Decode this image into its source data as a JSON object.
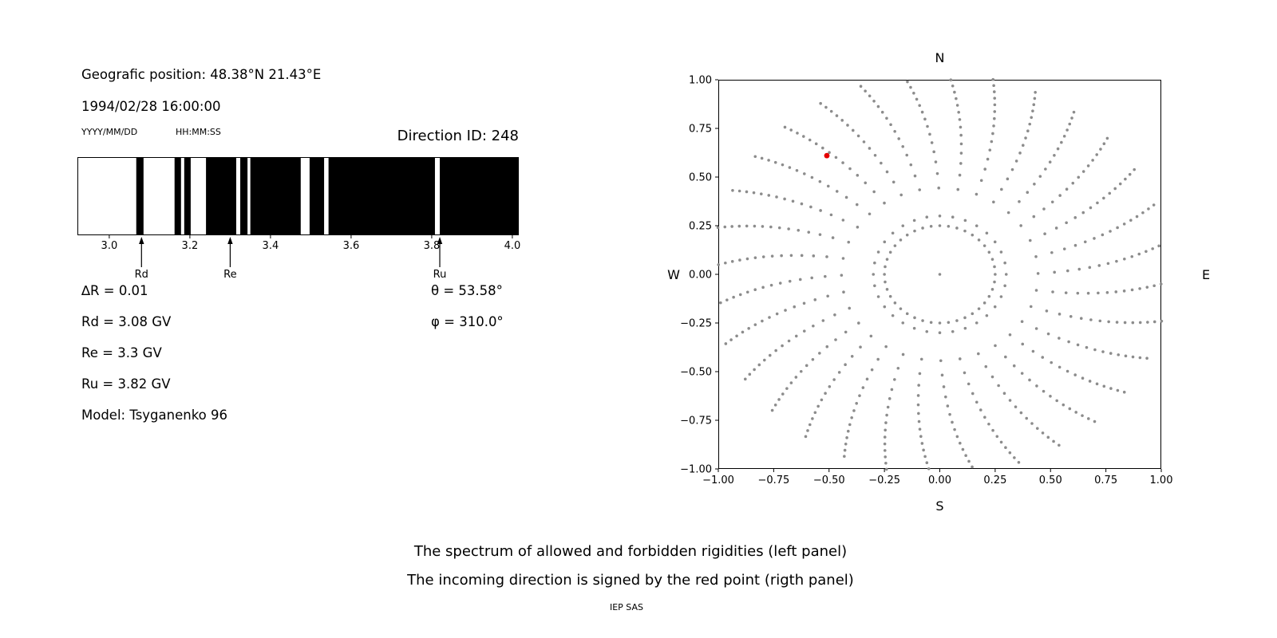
{
  "header": {
    "position": "Geografic position: 48.38°N 21.43°E",
    "datetime": "1994/02/28 16:00:00",
    "date_format_label": "YYYY/MM/DD",
    "time_format_label": "HH:MM:SS",
    "direction_id": "Direction ID: 248"
  },
  "params": {
    "delta_r": "∆R = 0.01",
    "theta": "θ = 53.58°",
    "rd": "Rd = 3.08 GV",
    "phi": "φ = 310.0°",
    "re": "Re = 3.3 GV",
    "ru": "Ru = 3.82 GV",
    "model": "Model: Tsyganenko 96"
  },
  "caption": {
    "line1": "The spectrum of allowed and forbidden rigidities (left panel)",
    "line2": "The incoming direction is signed by the red point (rigth panel)",
    "credit": "IEP SAS"
  },
  "chart_data": [
    {
      "type": "bar",
      "name": "rigidity-spectrum",
      "description": "Spectrum of allowed (black) and forbidden (white) rigidities in GV",
      "xlim": [
        2.921,
        4.016
      ],
      "xticks": [
        3.0,
        3.2,
        3.4,
        3.6,
        3.8,
        4.0
      ],
      "xtick_labels": [
        "3.0",
        "3.2",
        "3.4",
        "3.6",
        "3.8",
        "4.0"
      ],
      "allowed_color": "#000000",
      "forbidden_color": "#ffffff",
      "allowed_bands_gv": [
        [
          3.067,
          3.085
        ],
        [
          3.162,
          3.178
        ],
        [
          3.186,
          3.202
        ],
        [
          3.24,
          3.315
        ],
        [
          3.325,
          3.343
        ],
        [
          3.35,
          3.475
        ],
        [
          3.497,
          3.533
        ],
        [
          3.544,
          3.808
        ],
        [
          3.82,
          4.016
        ]
      ],
      "markers": [
        {
          "label": "Rd",
          "x": 3.08
        },
        {
          "label": "Re",
          "x": 3.3
        },
        {
          "label": "Ru",
          "x": 3.82
        }
      ]
    },
    {
      "type": "scatter",
      "name": "asymptotic-directions",
      "xlim": [
        -1.0,
        1.0
      ],
      "ylim": [
        -1.0,
        1.0
      ],
      "xticks": [
        -1.0,
        -0.75,
        -0.5,
        -0.25,
        0.0,
        0.25,
        0.5,
        0.75,
        1.0
      ],
      "xtick_labels": [
        "−1.00",
        "−0.75",
        "−0.50",
        "−0.25",
        "0.00",
        "0.25",
        "0.50",
        "0.75",
        "1.00"
      ],
      "yticks": [
        1.0,
        0.75,
        0.5,
        0.25,
        0.0,
        -0.25,
        -0.5,
        -0.75,
        -1.0
      ],
      "ytick_labels": [
        "1.00",
        "0.75",
        "0.50",
        "0.25",
        "0.00",
        "−0.25",
        "−0.50",
        "−0.75",
        "−1.00"
      ],
      "compass": {
        "top": "N",
        "bottom": "S",
        "left": "W",
        "right": "E"
      },
      "dot_color": "#8c8c8c",
      "pattern": {
        "spokes": 32,
        "spoke_r_start": 0.3,
        "spoke_r_end": 1.03,
        "spoke_points": 16,
        "cluster_exponent": 0.6,
        "twist_deg": 9,
        "inner_circle_r": 0.25,
        "inner_circle_points": 40,
        "center_dot": true
      },
      "red_point": {
        "x": -0.51,
        "y": 0.61,
        "color": "#e50000",
        "label": "incoming direction"
      }
    }
  ]
}
